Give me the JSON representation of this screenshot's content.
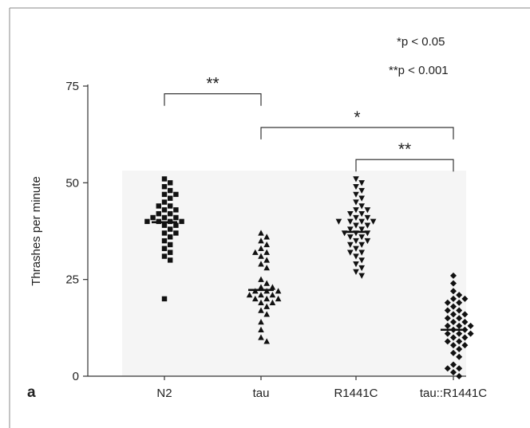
{
  "panel_label": "a",
  "legend": {
    "p05": "*p < 0.05",
    "p001": "**p < 0.001"
  },
  "chart_data": {
    "type": "scatter",
    "ylabel": "Thrashes per minute",
    "xlabel": "",
    "ylim": [
      0,
      75
    ],
    "yticks": [
      0,
      25,
      50,
      75
    ],
    "categories": [
      "N2",
      "tau",
      "R1441C",
      "tau::R1441C"
    ],
    "markers": [
      "square",
      "triangle-up",
      "triangle-down",
      "diamond"
    ],
    "series": [
      {
        "values": [
          51,
          50,
          49,
          48,
          47,
          47,
          46,
          45,
          44,
          44,
          43,
          43,
          42,
          42,
          41,
          41,
          41,
          40,
          40,
          40,
          40,
          39,
          39,
          38,
          37,
          37,
          36,
          35,
          34,
          33,
          32,
          31,
          30,
          20
        ],
        "median": 39.8
      },
      {
        "values": [
          37,
          36,
          35,
          34,
          33,
          32,
          32,
          31,
          30,
          29,
          28,
          25,
          24,
          23,
          23,
          22,
          22,
          22,
          21,
          21,
          21,
          20,
          20,
          20,
          19,
          19,
          18,
          17,
          16,
          14,
          12,
          10,
          9
        ],
        "median": 22.3
      },
      {
        "values": [
          51,
          50,
          49,
          48,
          47,
          46,
          45,
          44,
          43,
          43,
          42,
          42,
          41,
          41,
          40,
          40,
          40,
          40,
          39,
          39,
          38,
          38,
          37,
          37,
          37,
          36,
          36,
          35,
          35,
          34,
          34,
          33,
          32,
          32,
          31,
          30,
          29,
          28,
          27,
          26
        ],
        "median": 37.3
      },
      {
        "values": [
          26,
          24,
          22,
          21,
          20,
          20,
          19,
          19,
          18,
          17,
          17,
          16,
          16,
          15,
          15,
          14,
          14,
          13,
          13,
          13,
          12,
          12,
          11,
          11,
          11,
          10,
          10,
          9,
          9,
          8,
          8,
          7,
          6,
          5,
          3,
          2,
          2,
          1,
          0
        ],
        "median": 12.0
      }
    ],
    "significance": [
      {
        "from": 0,
        "to": 1,
        "label": "**",
        "y": 73
      },
      {
        "from": 1,
        "to": 3,
        "label": "*",
        "y": 64.3
      },
      {
        "from": 2,
        "to": 3,
        "label": "**",
        "y": 56
      }
    ]
  }
}
